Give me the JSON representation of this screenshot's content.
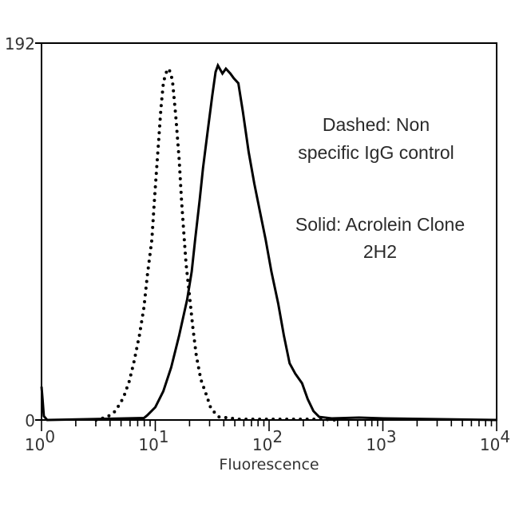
{
  "chart_data": {
    "type": "line",
    "subtype": "flow-cytometry histogram overlay",
    "title": "",
    "xlabel": "Fluorescence",
    "ylabel": "",
    "xscale": "log",
    "xlim": [
      1,
      10000
    ],
    "ylim": [
      0,
      192
    ],
    "x_ticks": [
      {
        "base": "10",
        "exp": "0"
      },
      {
        "base": "10",
        "exp": "1"
      },
      {
        "base": "10",
        "exp": "2"
      },
      {
        "base": "10",
        "exp": "3"
      },
      {
        "base": "10",
        "exp": "4"
      }
    ],
    "y_ticks": [
      "0",
      "192"
    ],
    "grid": false,
    "legend": "none (annotations used)",
    "annotations": [
      {
        "lines": [
          "Dashed: Non",
          "specific IgG control"
        ]
      },
      {
        "lines": [
          "Solid: Acrolein Clone",
          "2H2"
        ]
      }
    ],
    "series": [
      {
        "name": "Solid: Acrolein Clone 2H2",
        "style": "solid",
        "color": "#000000",
        "points_log10x_count": [
          [
            0.0,
            17
          ],
          [
            0.01,
            10
          ],
          [
            0.02,
            2
          ],
          [
            0.05,
            0
          ],
          [
            0.9,
            1
          ],
          [
            0.93,
            2.4
          ],
          [
            1.0,
            6.5
          ],
          [
            1.07,
            14.6
          ],
          [
            1.14,
            26.8
          ],
          [
            1.21,
            43.1
          ],
          [
            1.28,
            61.4
          ],
          [
            1.32,
            75.6
          ],
          [
            1.35,
            91.9
          ],
          [
            1.39,
            112.2
          ],
          [
            1.42,
            128.5
          ],
          [
            1.46,
            146.8
          ],
          [
            1.5,
            165.1
          ],
          [
            1.53,
            177.3
          ],
          [
            1.55,
            180.6
          ],
          [
            1.59,
            176.5
          ],
          [
            1.62,
            179.0
          ],
          [
            1.66,
            176.5
          ],
          [
            1.69,
            174.1
          ],
          [
            1.73,
            171.6
          ],
          [
            1.77,
            157.0
          ],
          [
            1.82,
            136.6
          ],
          [
            1.87,
            120.4
          ],
          [
            1.92,
            106.1
          ],
          [
            1.97,
            91.9
          ],
          [
            2.02,
            75.6
          ],
          [
            2.08,
            59.4
          ],
          [
            2.13,
            43.1
          ],
          [
            2.18,
            28.9
          ],
          [
            2.23,
            23.6
          ],
          [
            2.29,
            18.7
          ],
          [
            2.34,
            10.6
          ],
          [
            2.39,
            4.5
          ],
          [
            2.44,
            1.6
          ],
          [
            2.55,
            0.8
          ],
          [
            2.79,
            1.2
          ],
          [
            3.01,
            0.8
          ],
          [
            4.0,
            0
          ]
        ]
      },
      {
        "name": "Dashed: Non specific IgG control",
        "style": "dotted",
        "color": "#000000",
        "points_log10x_count": [
          [
            0.48,
            0
          ],
          [
            0.58,
            1.6
          ],
          [
            0.65,
            4.5
          ],
          [
            0.72,
            11.4
          ],
          [
            0.77,
            19.5
          ],
          [
            0.81,
            28.9
          ],
          [
            0.86,
            43.1
          ],
          [
            0.9,
            57.4
          ],
          [
            0.93,
            73.6
          ],
          [
            0.97,
            91.9
          ],
          [
            0.99,
            110.2
          ],
          [
            1.01,
            126.5
          ],
          [
            1.03,
            142.8
          ],
          [
            1.05,
            159.0
          ],
          [
            1.07,
            171.2
          ],
          [
            1.09,
            176.5
          ],
          [
            1.12,
            179.0
          ],
          [
            1.15,
            173.3
          ],
          [
            1.18,
            155.0
          ],
          [
            1.21,
            132.6
          ],
          [
            1.23,
            112.2
          ],
          [
            1.25,
            95.9
          ],
          [
            1.27,
            79.7
          ],
          [
            1.3,
            63.4
          ],
          [
            1.33,
            47.2
          ],
          [
            1.36,
            32.9
          ],
          [
            1.4,
            20.7
          ],
          [
            1.45,
            12.6
          ],
          [
            1.49,
            5.7
          ],
          [
            1.56,
            1.6
          ],
          [
            1.74,
            0.4
          ],
          [
            2.44,
            0.4
          ],
          [
            2.58,
            0
          ]
        ]
      }
    ]
  },
  "plot": {
    "y_max_label": "192",
    "y_min_label": "0",
    "x_axis_title": "Fluorescence"
  },
  "annotations": {
    "dashed_line1": "Dashed: Non",
    "dashed_line2": "specific IgG control",
    "solid_line1": "Solid: Acrolein Clone",
    "solid_line2": "2H2"
  }
}
